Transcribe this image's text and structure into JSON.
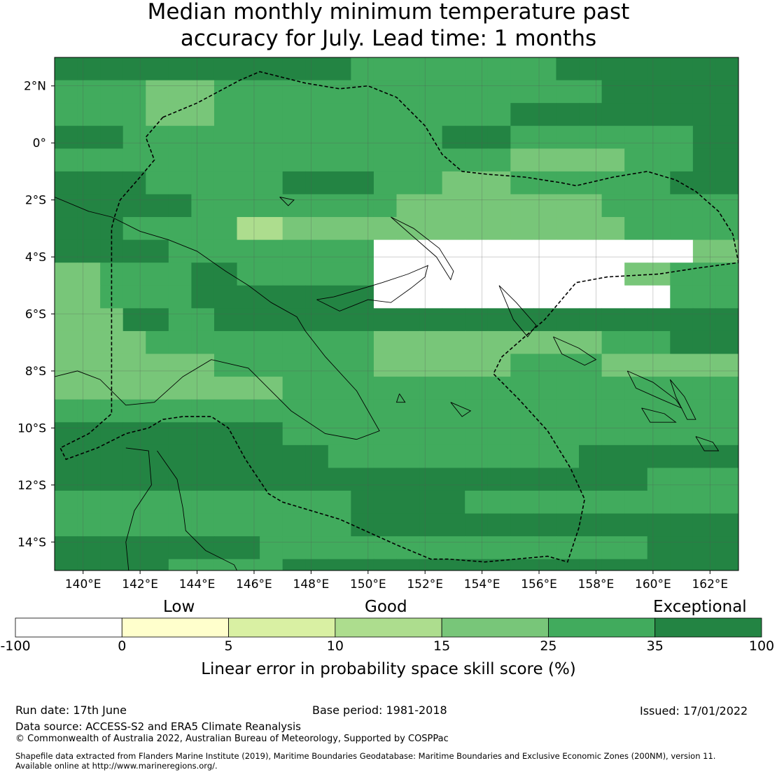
{
  "title": {
    "line1": "Median monthly minimum temperature past",
    "line2": "accuracy for July. Lead time: 1 months"
  },
  "map": {
    "lon_range": [
      139.0,
      163.0
    ],
    "lat_range": [
      -15.0,
      3.0
    ],
    "cell_size_deg": 0.8,
    "x_ticks": [
      {
        "value": 140,
        "label": "140°E"
      },
      {
        "value": 142,
        "label": "142°E"
      },
      {
        "value": 144,
        "label": "144°E"
      },
      {
        "value": 146,
        "label": "146°E"
      },
      {
        "value": 148,
        "label": "148°E"
      },
      {
        "value": 150,
        "label": "150°E"
      },
      {
        "value": 152,
        "label": "152°E"
      },
      {
        "value": 154,
        "label": "154°E"
      },
      {
        "value": 156,
        "label": "156°E"
      },
      {
        "value": 158,
        "label": "158°E"
      },
      {
        "value": 160,
        "label": "160°E"
      },
      {
        "value": 162,
        "label": "162°E"
      }
    ],
    "y_ticks": [
      {
        "value": 2,
        "label": "2°N"
      },
      {
        "value": 0,
        "label": "0°"
      },
      {
        "value": -2,
        "label": "2°S"
      },
      {
        "value": -4,
        "label": "4°S"
      },
      {
        "value": -6,
        "label": "6°S"
      },
      {
        "value": -8,
        "label": "8°S"
      },
      {
        "value": -10,
        "label": "10°S"
      },
      {
        "value": -12,
        "label": "12°S"
      },
      {
        "value": -14,
        "label": "14°S"
      }
    ],
    "classes": [
      {
        "min": -100,
        "max": 0,
        "color": "#ffffff"
      },
      {
        "min": 0,
        "max": 5,
        "color": "#ffffcc"
      },
      {
        "min": 5,
        "max": 10,
        "color": "#d9f0a3"
      },
      {
        "min": 10,
        "max": 15,
        "color": "#addd8e"
      },
      {
        "min": 15,
        "max": 25,
        "color": "#78c679"
      },
      {
        "min": 25,
        "max": 35,
        "color": "#41ab5d"
      },
      {
        "min": 35,
        "max": 100,
        "color": "#238443"
      }
    ],
    "grid_rows": [
      "6665566",
      "545555566",
      "545555666",
      "65555565556",
      "555555554456",
      "655654556",
      "6655544455",
      "655344444455",
      "6655550000004",
      "4556555000000455",
      "4556666000000055",
      "46566666666666",
      "455544456",
      "445544544",
      "444555555",
      "555555",
      "665555",
      "66655566",
      "6666665",
      "5556555",
      "5556666",
      "6655556",
      "656666",
      "566",
      "566",
      "66",
      "56",
      "66",
      "66",
      "56",
      "55"
    ],
    "boundary_lines": [
      [
        [
          142.8,
          0.9
        ],
        [
          144.0,
          1.4
        ],
        [
          145.5,
          2.2
        ],
        [
          146.2,
          2.5
        ],
        [
          147.8,
          2.1
        ],
        [
          149.0,
          1.9
        ],
        [
          150.0,
          2.0
        ],
        [
          151.0,
          1.6
        ],
        [
          152.0,
          0.6
        ],
        [
          152.6,
          -0.4
        ],
        [
          153.3,
          -1.0
        ],
        [
          154.2,
          -1.1
        ],
        [
          155.5,
          -1.2
        ],
        [
          156.8,
          -1.4
        ],
        [
          157.3,
          -1.5
        ],
        [
          158.6,
          -1.2
        ],
        [
          159.8,
          -1.0
        ],
        [
          160.8,
          -1.3
        ],
        [
          161.5,
          -1.7
        ],
        [
          162.3,
          -2.4
        ],
        [
          162.8,
          -3.2
        ],
        [
          163.0,
          -4.2
        ],
        [
          161.5,
          -4.4
        ],
        [
          160.2,
          -4.6
        ],
        [
          158.4,
          -4.7
        ],
        [
          157.3,
          -4.9
        ],
        [
          156.2,
          -6.2
        ],
        [
          155.5,
          -6.8
        ],
        [
          154.7,
          -7.5
        ],
        [
          154.4,
          -8.1
        ],
        [
          155.3,
          -9.0
        ],
        [
          156.3,
          -10.1
        ],
        [
          157.1,
          -11.4
        ],
        [
          157.6,
          -12.5
        ],
        [
          157.4,
          -13.5
        ],
        [
          157.0,
          -14.7
        ],
        [
          156.3,
          -14.5
        ],
        [
          154.1,
          -14.7
        ],
        [
          152.8,
          -14.6
        ],
        [
          152.2,
          -14.6
        ],
        [
          151.0,
          -14.1
        ],
        [
          149.0,
          -13.2
        ],
        [
          147.0,
          -12.6
        ],
        [
          146.5,
          -12.3
        ],
        [
          145.7,
          -11.1
        ],
        [
          145.1,
          -10.0
        ],
        [
          144.5,
          -9.6
        ],
        [
          143.5,
          -9.6
        ],
        [
          142.8,
          -9.7
        ],
        [
          142.3,
          -10.0
        ],
        [
          141.5,
          -10.2
        ],
        [
          140.5,
          -10.7
        ],
        [
          139.4,
          -11.1
        ],
        [
          139.2,
          -10.7
        ],
        [
          140.2,
          -10.2
        ],
        [
          141.0,
          -9.5
        ],
        [
          141.0,
          -8.5
        ],
        [
          141.0,
          -6.0
        ],
        [
          141.0,
          -3.0
        ],
        [
          141.1,
          -2.6
        ],
        [
          141.3,
          -2.0
        ],
        [
          142.0,
          -1.2
        ],
        [
          142.5,
          -0.6
        ],
        [
          142.2,
          0.2
        ],
        [
          142.8,
          0.9
        ]
      ]
    ],
    "coastlines": [
      [
        [
          139.0,
          -1.9
        ],
        [
          140.2,
          -2.4
        ],
        [
          141.0,
          -2.6
        ],
        [
          142.0,
          -3.1
        ],
        [
          143.0,
          -3.4
        ],
        [
          144.0,
          -3.8
        ],
        [
          145.0,
          -4.5
        ],
        [
          145.8,
          -5.0
        ],
        [
          146.6,
          -5.6
        ],
        [
          147.5,
          -6.1
        ],
        [
          147.8,
          -6.6
        ],
        [
          148.5,
          -7.5
        ],
        [
          149.6,
          -8.7
        ],
        [
          150.4,
          -10.1
        ],
        [
          149.6,
          -10.4
        ],
        [
          148.5,
          -10.2
        ],
        [
          147.3,
          -9.4
        ],
        [
          146.5,
          -8.6
        ],
        [
          145.8,
          -7.9
        ],
        [
          144.5,
          -7.6
        ],
        [
          143.5,
          -8.2
        ],
        [
          142.5,
          -9.1
        ],
        [
          141.5,
          -9.2
        ],
        [
          140.6,
          -8.3
        ],
        [
          139.8,
          -8.0
        ],
        [
          139.0,
          -8.2
        ]
      ],
      [
        [
          141.5,
          -10.7
        ],
        [
          142.3,
          -10.8
        ],
        [
          142.4,
          -12.0
        ],
        [
          141.8,
          -12.9
        ],
        [
          141.5,
          -14.0
        ],
        [
          141.6,
          -15.0
        ]
      ],
      [
        [
          142.6,
          -10.8
        ],
        [
          143.3,
          -11.8
        ],
        [
          143.5,
          -12.8
        ],
        [
          143.6,
          -13.6
        ],
        [
          144.3,
          -14.3
        ],
        [
          145.3,
          -14.8
        ],
        [
          145.4,
          -15.0
        ]
      ],
      [
        [
          148.2,
          -5.5
        ],
        [
          149.0,
          -5.9
        ],
        [
          150.0,
          -5.5
        ],
        [
          150.8,
          -5.6
        ],
        [
          151.5,
          -5.1
        ],
        [
          152.0,
          -4.7
        ],
        [
          152.1,
          -4.3
        ],
        [
          151.4,
          -4.6
        ],
        [
          150.5,
          -4.9
        ],
        [
          149.5,
          -5.2
        ],
        [
          148.8,
          -5.4
        ],
        [
          148.2,
          -5.5
        ]
      ],
      [
        [
          150.8,
          -2.6
        ],
        [
          151.6,
          -3.0
        ],
        [
          152.5,
          -3.7
        ],
        [
          153.0,
          -4.5
        ],
        [
          152.9,
          -4.8
        ],
        [
          152.4,
          -4.0
        ],
        [
          151.6,
          -3.3
        ],
        [
          150.8,
          -2.6
        ]
      ],
      [
        [
          154.6,
          -5.0
        ],
        [
          155.2,
          -5.6
        ],
        [
          155.9,
          -6.4
        ],
        [
          155.6,
          -6.8
        ],
        [
          155.1,
          -6.2
        ],
        [
          154.6,
          -5.0
        ]
      ],
      [
        [
          156.5,
          -6.8
        ],
        [
          157.4,
          -7.2
        ],
        [
          158.0,
          -7.6
        ],
        [
          157.6,
          -7.8
        ],
        [
          156.8,
          -7.4
        ],
        [
          156.5,
          -6.8
        ]
      ],
      [
        [
          159.1,
          -8.0
        ],
        [
          160.0,
          -8.4
        ],
        [
          160.8,
          -9.0
        ],
        [
          161.0,
          -9.3
        ],
        [
          160.3,
          -9.0
        ],
        [
          159.4,
          -8.6
        ],
        [
          159.1,
          -8.0
        ]
      ],
      [
        [
          159.6,
          -9.3
        ],
        [
          160.4,
          -9.5
        ],
        [
          160.8,
          -9.8
        ],
        [
          159.9,
          -9.8
        ],
        [
          159.6,
          -9.3
        ]
      ],
      [
        [
          160.6,
          -8.3
        ],
        [
          161.1,
          -8.9
        ],
        [
          161.5,
          -9.7
        ],
        [
          161.2,
          -9.7
        ],
        [
          160.8,
          -8.9
        ],
        [
          160.6,
          -8.3
        ]
      ],
      [
        [
          161.5,
          -10.3
        ],
        [
          162.1,
          -10.5
        ],
        [
          162.3,
          -10.8
        ],
        [
          161.8,
          -10.8
        ],
        [
          161.5,
          -10.3
        ]
      ],
      [
        [
          146.9,
          -1.9
        ],
        [
          147.4,
          -2.0
        ],
        [
          147.2,
          -2.2
        ],
        [
          146.9,
          -1.9
        ]
      ],
      [
        [
          152.9,
          -9.1
        ],
        [
          153.6,
          -9.4
        ],
        [
          153.3,
          -9.6
        ],
        [
          152.9,
          -9.1
        ]
      ],
      [
        [
          151.1,
          -8.8
        ],
        [
          151.3,
          -9.1
        ],
        [
          151.0,
          -9.1
        ],
        [
          151.1,
          -8.8
        ]
      ]
    ]
  },
  "colorbar": {
    "category_labels": {
      "low": "Low",
      "good": "Good",
      "exceptional": "Exceptional"
    },
    "ticks": [
      "-100",
      "0",
      "5",
      "10",
      "15",
      "25",
      "35",
      "100"
    ],
    "colors": [
      "#ffffff",
      "#ffffcc",
      "#d9f0a3",
      "#addd8e",
      "#78c679",
      "#41ab5d",
      "#238443"
    ],
    "title": "Linear error in probability space skill score (%)"
  },
  "footer": {
    "run_date": "Run date: 17th June",
    "base_period": "Base period: 1981-2018",
    "issued": "Issued: 17/01/2022",
    "data_source": "Data source: ACCESS-S2 and ERA5 Climate Reanalysis",
    "copyright": "© Commonwealth of Australia 2022, Australian Bureau of Meteorology, Supported by COSPPac",
    "shapefile_line1": "Shapefile data extracted from Flanders Marine Institute (2019), Maritime Boundaries Geodatabase: Maritime Boundaries and Exclusive Economic Zones (200NM), version 11.",
    "shapefile_line2": "Available online at http://www.marineregions.org/."
  }
}
